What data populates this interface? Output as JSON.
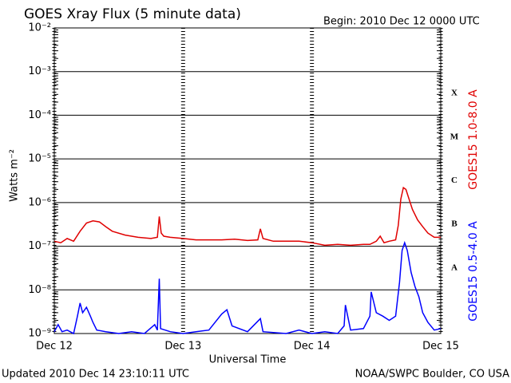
{
  "chart_data": {
    "type": "line",
    "title": "GOES Xray Flux (5 minute data)",
    "subtitle": "Begin:  2010 Dec 12 0000 UTC",
    "ylabel": "Watts m⁻²",
    "xlabel": "Universal Time",
    "footer_left": "Updated 2010 Dec 14 23:10:11 UTC",
    "footer_right": "NOAA/SWPC Boulder, CO USA",
    "log_y": true,
    "grid": true,
    "ylim": [
      1e-09,
      0.01
    ],
    "yticks": [
      {
        "value": 1e-09,
        "label": "10⁻⁹"
      },
      {
        "value": 1e-08,
        "label": "10⁻⁸"
      },
      {
        "value": 1e-07,
        "label": "10⁻⁷"
      },
      {
        "value": 1e-06,
        "label": "10⁻⁶"
      },
      {
        "value": 1e-05,
        "label": "10⁻⁵"
      },
      {
        "value": 0.0001,
        "label": "10⁻⁴"
      },
      {
        "value": 0.001,
        "label": "10⁻³"
      },
      {
        "value": 0.01,
        "label": "10⁻²"
      }
    ],
    "xlim": [
      0,
      3
    ],
    "xticks": [
      {
        "value": 0,
        "label": "Dec 12"
      },
      {
        "value": 1,
        "label": "Dec 13"
      },
      {
        "value": 2,
        "label": "Dec 14"
      },
      {
        "value": 3,
        "label": "Dec 15"
      }
    ],
    "flare_classes": [
      "X",
      "M",
      "C",
      "B",
      "A"
    ],
    "series": [
      {
        "name": "GOES15 1.0-8.0 A",
        "color": "#e00000",
        "x": [
          0,
          0.05,
          0.1,
          0.15,
          0.2,
          0.25,
          0.3,
          0.35,
          0.4,
          0.45,
          0.55,
          0.65,
          0.75,
          0.8,
          0.815,
          0.83,
          0.85,
          0.9,
          1.0,
          1.1,
          1.2,
          1.3,
          1.4,
          1.5,
          1.58,
          1.6,
          1.62,
          1.7,
          1.8,
          1.9,
          2.0,
          2.1,
          2.2,
          2.3,
          2.4,
          2.45,
          2.5,
          2.53,
          2.56,
          2.6,
          2.65,
          2.67,
          2.69,
          2.71,
          2.73,
          2.75,
          2.78,
          2.82,
          2.86,
          2.9,
          2.95,
          3.0
        ],
        "values": [
          1.3e-07,
          1.2e-07,
          1.5e-07,
          1.3e-07,
          2.2e-07,
          3.4e-07,
          3.8e-07,
          3.6e-07,
          2.8e-07,
          2.2e-07,
          1.8e-07,
          1.6e-07,
          1.5e-07,
          1.6e-07,
          4.8e-07,
          2e-07,
          1.7e-07,
          1.6e-07,
          1.5e-07,
          1.4e-07,
          1.4e-07,
          1.4e-07,
          1.45e-07,
          1.35e-07,
          1.4e-07,
          2.5e-07,
          1.5e-07,
          1.3e-07,
          1.3e-07,
          1.3e-07,
          1.2e-07,
          1.05e-07,
          1.1e-07,
          1.05e-07,
          1.1e-07,
          1.1e-07,
          1.3e-07,
          1.7e-07,
          1.2e-07,
          1.3e-07,
          1.4e-07,
          3e-07,
          1.2e-06,
          2.2e-06,
          2e-06,
          1.3e-06,
          7e-07,
          4e-07,
          2.8e-07,
          2e-07,
          1.6e-07,
          1.6e-07
        ]
      },
      {
        "name": "GOES15 0.5-4.0 A",
        "color": "#0000ff",
        "x": [
          0,
          0.03,
          0.06,
          0.1,
          0.15,
          0.18,
          0.2,
          0.22,
          0.25,
          0.28,
          0.3,
          0.33,
          0.4,
          0.5,
          0.6,
          0.7,
          0.78,
          0.8,
          0.815,
          0.825,
          0.9,
          1.0,
          1.1,
          1.2,
          1.3,
          1.34,
          1.38,
          1.5,
          1.6,
          1.62,
          1.8,
          1.9,
          2.0,
          2.1,
          2.2,
          2.25,
          2.26,
          2.3,
          2.4,
          2.45,
          2.46,
          2.5,
          2.55,
          2.6,
          2.65,
          2.68,
          2.7,
          2.72,
          2.74,
          2.77,
          2.8,
          2.83,
          2.86,
          2.9,
          2.95,
          3.0
        ],
        "values": [
          1.1e-09,
          1.6e-09,
          1.1e-09,
          1.2e-09,
          1e-09,
          2.5e-09,
          5e-09,
          3e-09,
          4e-09,
          2.5e-09,
          1.8e-09,
          1.2e-09,
          1.1e-09,
          1e-09,
          1.1e-09,
          1e-09,
          1.6e-09,
          1.2e-09,
          1.8e-08,
          1.3e-09,
          1.1e-09,
          1e-09,
          1.1e-09,
          1.2e-09,
          2.8e-09,
          3.5e-09,
          1.5e-09,
          1.1e-09,
          2.2e-09,
          1.1e-09,
          1e-09,
          1.2e-09,
          1e-09,
          1.1e-09,
          1e-09,
          1.5e-09,
          4.5e-09,
          1.2e-09,
          1.3e-09,
          2.5e-09,
          9e-09,
          3e-09,
          2.5e-09,
          2e-09,
          2.5e-09,
          1.5e-08,
          8e-08,
          1.2e-07,
          8e-08,
          2.5e-08,
          1.2e-08,
          7e-09,
          3e-09,
          1.8e-09,
          1.2e-09,
          1.3e-09
        ]
      }
    ]
  }
}
